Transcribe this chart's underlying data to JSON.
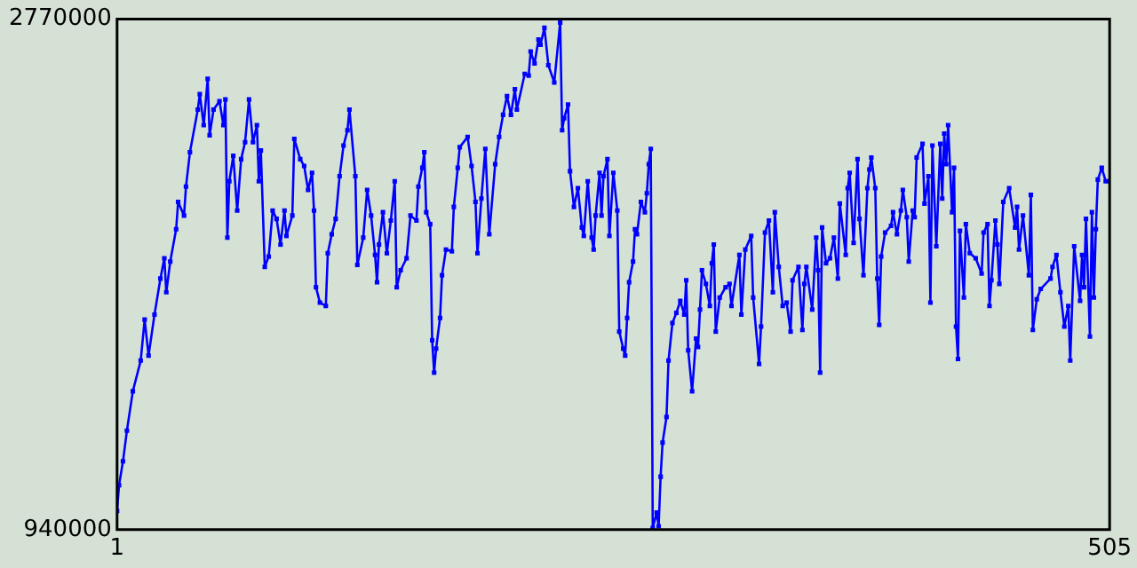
{
  "chart_data": {
    "type": "line",
    "marker": "square",
    "xlim": [
      1,
      505
    ],
    "xticks": [
      1,
      505
    ],
    "ylim": [
      940000,
      2770000
    ],
    "yticks": [
      940000,
      2770000
    ],
    "x": [
      1,
      2,
      4,
      6,
      9,
      13,
      15,
      17,
      20,
      23,
      25,
      26,
      28,
      31,
      32,
      35,
      36,
      38,
      42,
      43,
      45,
      47,
      48,
      50,
      53,
      55,
      56,
      57,
      58,
      60,
      62,
      64,
      66,
      68,
      70,
      72,
      73,
      74,
      76,
      78,
      80,
      82,
      84,
      86,
      87,
      90,
      91,
      94,
      96,
      98,
      100,
      101,
      102,
      104,
      107,
      108,
      110,
      112,
      114,
      116,
      118,
      119,
      122,
      123,
      126,
      128,
      130,
      132,
      133,
      134,
      136,
      138,
      140,
      142,
      143,
      145,
      148,
      150,
      153,
      154,
      156,
      157,
      158,
      160,
      161,
      162,
      163,
      165,
      166,
      168,
      171,
      172,
      174,
      175,
      179,
      181,
      183,
      184,
      186,
      188,
      190,
      193,
      195,
      197,
      199,
      201,
      203,
      204,
      208,
      210,
      211,
      213,
      215,
      216,
      218,
      220,
      223,
      226,
      227,
      228,
      230,
      231,
      233,
      235,
      237,
      238,
      240,
      242,
      243,
      244,
      246,
      247,
      248,
      250,
      251,
      253,
      255,
      256,
      258,
      259,
      260,
      261,
      263,
      264,
      265,
      267,
      269,
      270,
      271,
      272,
      273,
      275,
      276,
      277,
      278,
      280,
      281,
      283,
      285,
      287,
      289,
      290,
      291,
      293,
      295,
      296,
      297,
      298,
      300,
      302,
      303,
      304,
      305,
      307,
      310,
      312,
      313,
      317,
      318,
      320,
      323,
      324,
      327,
      328,
      330,
      332,
      334,
      335,
      337,
      339,
      341,
      343,
      344,
      347,
      349,
      350,
      351,
      354,
      356,
      357,
      358,
      359,
      361,
      363,
      365,
      367,
      368,
      371,
      372,
      373,
      375,
      377,
      378,
      380,
      382,
      383,
      384,
      386,
      387,
      388,
      389,
      391,
      394,
      395,
      397,
      399,
      400,
      402,
      403,
      405,
      406,
      407,
      410,
      411,
      413,
      414,
      415,
      417,
      419,
      420,
      421,
      422,
      423,
      425,
      426,
      427,
      428,
      429,
      431,
      432,
      434,
      437,
      440,
      441,
      443,
      444,
      445,
      447,
      448,
      449,
      451,
      454,
      457,
      458,
      459,
      461,
      464,
      465,
      466,
      468,
      470,
      475,
      476,
      478,
      480,
      482,
      484,
      485,
      487,
      490,
      491,
      492,
      493,
      495,
      496,
      497,
      498,
      499,
      501,
      503,
      505
    ],
    "series": [
      {
        "color": "#0000ff",
        "values": [
          1007000,
          1099000,
          1185000,
          1295000,
          1436000,
          1546000,
          1693000,
          1564000,
          1711000,
          1840000,
          1913000,
          1791000,
          1901000,
          2017000,
          2115000,
          2066000,
          2170000,
          2293000,
          2446000,
          2501000,
          2390000,
          2556000,
          2354000,
          2446000,
          2476000,
          2390000,
          2482000,
          1987000,
          2189000,
          2280000,
          2084000,
          2268000,
          2329000,
          2482000,
          2329000,
          2390000,
          2189000,
          2299000,
          1882000,
          1919000,
          2084000,
          2054000,
          1962000,
          2084000,
          1993000,
          2066000,
          2341000,
          2268000,
          2244000,
          2158000,
          2219000,
          2084000,
          1809000,
          1754000,
          1742000,
          1931000,
          1999000,
          2054000,
          2207000,
          2317000,
          2372000,
          2446000,
          2207000,
          1889000,
          1987000,
          2158000,
          2066000,
          1925000,
          1827000,
          1962000,
          2078000,
          1931000,
          2048000,
          2189000,
          1809000,
          1870000,
          1913000,
          2066000,
          2048000,
          2170000,
          2237000,
          2293000,
          2078000,
          2035000,
          1619000,
          1503000,
          1589000,
          1699000,
          1852000,
          1944000,
          1938000,
          2097000,
          2237000,
          2311000,
          2348000,
          2244000,
          2115000,
          1931000,
          2127000,
          2305000,
          1999000,
          2250000,
          2348000,
          2427000,
          2494000,
          2427000,
          2519000,
          2446000,
          2574000,
          2568000,
          2654000,
          2611000,
          2697000,
          2678000,
          2739000,
          2605000,
          2543000,
          2758000,
          2372000,
          2415000,
          2464000,
          2225000,
          2097000,
          2164000,
          2023000,
          1993000,
          2189000,
          1987000,
          1944000,
          2066000,
          2219000,
          2066000,
          2207000,
          2268000,
          1993000,
          2219000,
          2084000,
          1650000,
          1589000,
          1564000,
          1699000,
          1827000,
          1901000,
          2017000,
          1999000,
          2115000,
          2078000,
          2146000,
          2250000,
          2305000,
          946000,
          1001000,
          952000,
          1130000,
          1252000,
          1344000,
          1546000,
          1681000,
          1717000,
          1760000,
          1711000,
          1834000,
          1583000,
          1436000,
          1625000,
          1595000,
          1729000,
          1870000,
          1821000,
          1742000,
          1895000,
          1962000,
          1650000,
          1772000,
          1809000,
          1821000,
          1742000,
          1925000,
          1711000,
          1944000,
          1993000,
          1772000,
          1534000,
          1668000,
          2005000,
          2048000,
          1791000,
          2078000,
          1882000,
          1742000,
          1754000,
          1650000,
          1834000,
          1882000,
          1656000,
          1821000,
          1882000,
          1729000,
          1987000,
          1870000,
          1503000,
          2023000,
          1895000,
          1913000,
          1987000,
          1840000,
          2109000,
          1925000,
          2164000,
          2219000,
          1968000,
          2268000,
          2054000,
          1852000,
          2164000,
          2231000,
          2274000,
          2164000,
          1840000,
          1674000,
          1919000,
          2005000,
          2029000,
          2078000,
          1999000,
          2084000,
          2158000,
          2060000,
          1901000,
          2084000,
          2060000,
          2274000,
          2323000,
          2109000,
          2207000,
          1754000,
          2317000,
          1956000,
          2323000,
          2127000,
          2360000,
          2250000,
          2390000,
          2078000,
          2237000,
          1668000,
          1552000,
          2011000,
          1772000,
          2035000,
          1931000,
          1913000,
          1858000,
          2005000,
          2035000,
          1742000,
          1834000,
          2048000,
          1962000,
          1821000,
          2115000,
          2164000,
          2023000,
          2097000,
          1944000,
          2066000,
          1852000,
          2140000,
          1656000,
          1766000,
          1803000,
          1840000,
          1882000,
          1925000,
          1791000,
          1668000,
          1742000,
          1546000,
          1956000,
          1760000,
          1925000,
          1809000,
          2054000,
          1632000,
          2078000,
          1772000,
          2017000,
          2195000,
          2237000,
          2189000,
          2189000
        ]
      }
    ]
  }
}
